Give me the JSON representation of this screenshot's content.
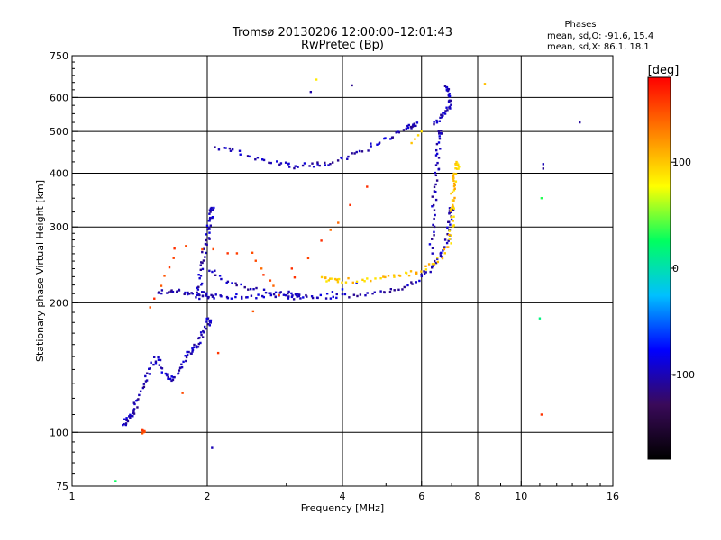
{
  "chart_data": {
    "type": "scatter",
    "title": "Tromsø 20130206 12:00:00–12:01:43",
    "subtitle": "RwPretec (Bp)",
    "stats": {
      "heading": "Phases",
      "line_o": "mean, sd,O: -91.6, 15.4",
      "line_x": "mean, sd,X:  86.1, 18.1"
    },
    "xlabel": "Frequency [MHz]",
    "ylabel": "Stationary phase Virtual Height [km]",
    "x_scale": "log",
    "y_scale": "log",
    "xlim": [
      1,
      16
    ],
    "ylim": [
      75,
      750
    ],
    "x_ticks": [
      1,
      2,
      4,
      6,
      8,
      10,
      16
    ],
    "x_tick_labels": [
      "1",
      "2",
      "4",
      "6",
      "8",
      "10",
      "16"
    ],
    "y_ticks": [
      75,
      100,
      200,
      300,
      400,
      500,
      600,
      750
    ],
    "y_tick_labels": [
      "75",
      "100",
      "200",
      "300",
      "400",
      "500",
      "600",
      "750"
    ],
    "grid": true,
    "grid_x": [
      2,
      4,
      6,
      8,
      10
    ],
    "grid_y": [
      100,
      200,
      300,
      400,
      500,
      600
    ],
    "colorbar": {
      "label": "[deg]",
      "range": [
        -180,
        180
      ],
      "ticks": [
        100,
        0,
        -100
      ],
      "tick_labels": [
        "100",
        "0",
        "-100"
      ],
      "stops": [
        "#000000",
        "#3a0a5a",
        "#0000ff",
        "#00c0ff",
        "#00ff60",
        "#ffff00",
        "#ff8000",
        "#ff0000"
      ]
    },
    "traces": [
      {
        "phase": -100,
        "x": [
          1.3,
          1.32,
          1.35,
          1.38,
          1.4,
          1.45,
          1.5,
          1.55,
          1.6,
          1.65,
          1.7,
          1.75,
          1.8,
          1.85,
          1.9,
          1.95,
          2.0,
          2.02
        ],
        "y": [
          104,
          107,
          109,
          113,
          120,
          132,
          142,
          150,
          138,
          132,
          135,
          142,
          152,
          155,
          160,
          168,
          178,
          182
        ]
      },
      {
        "phase": -100,
        "x": [
          1.9,
          1.92,
          1.95,
          1.97,
          2.0,
          2.02,
          2.03,
          2.05
        ],
        "y": [
          205,
          220,
          240,
          260,
          280,
          300,
          315,
          330
        ]
      },
      {
        "phase": -100,
        "x": [
          1.55,
          1.65,
          1.75,
          1.85,
          1.95,
          2.0,
          2.1,
          2.3,
          2.5,
          2.8,
          3.0,
          3.3,
          3.6,
          4.0,
          4.5,
          5.0,
          5.5,
          6.0,
          6.3,
          6.6,
          6.8,
          6.9,
          6.95,
          7.0
        ],
        "y": [
          213,
          212,
          212,
          210,
          210,
          207,
          207,
          207,
          207,
          207,
          206,
          206,
          206,
          207,
          209,
          212,
          218,
          228,
          240,
          255,
          270,
          290,
          310,
          330
        ]
      },
      {
        "phase": -100,
        "x": [
          2.0,
          2.2,
          2.4,
          2.7,
          3.0,
          3.2
        ],
        "y": [
          240,
          225,
          218,
          212,
          210,
          209
        ]
      },
      {
        "phase": -100,
        "x": [
          6.3,
          6.35,
          6.4,
          6.45,
          6.5,
          6.55,
          6.6
        ],
        "y": [
          260,
          300,
          340,
          380,
          420,
          460,
          500
        ]
      },
      {
        "phase": -100,
        "x": [
          2.1,
          2.3,
          2.6,
          2.9,
          3.1,
          3.4,
          3.7,
          4.0,
          4.4,
          4.8,
          5.2,
          5.6,
          5.8
        ],
        "y": [
          460,
          450,
          430,
          420,
          415,
          418,
          420,
          430,
          450,
          470,
          490,
          510,
          520
        ]
      },
      {
        "phase": -100,
        "x": [
          6.4,
          6.6,
          6.8,
          7.0,
          6.9,
          6.85
        ],
        "y": [
          520,
          540,
          560,
          580,
          600,
          630
        ]
      },
      {
        "phase": -80,
        "x": [
          3.7,
          3.8,
          4.0,
          4.3
        ],
        "y": [
          210,
          212,
          215,
          222
        ]
      },
      {
        "phase": 100,
        "x": [
          3.6,
          3.8,
          4.0,
          4.5,
          5.0,
          5.5,
          6.0,
          6.5,
          6.9,
          7.0,
          7.05
        ],
        "y": [
          228,
          226,
          225,
          226,
          228,
          232,
          238,
          250,
          270,
          300,
          330
        ]
      },
      {
        "phase": 100,
        "x": [
          7.0,
          7.05,
          7.1,
          7.15,
          7.2
        ],
        "y": [
          340,
          360,
          380,
          400,
          420
        ]
      },
      {
        "phase": 100,
        "x": [
          5.7,
          5.8,
          5.9,
          6.0
        ],
        "y": [
          470,
          480,
          490,
          500
        ]
      },
      {
        "phase": -100,
        "x": [
          11.2,
          11.2
        ],
        "y": [
          410,
          420
        ]
      },
      {
        "phase": -100,
        "x": [
          13.5,
          3.4,
          4.2,
          2.05
        ],
        "y": [
          525,
          618,
          640,
          92
        ]
      },
      {
        "phase": 100,
        "x": [
          3.5,
          8.3
        ],
        "y": [
          660,
          645
        ]
      },
      {
        "phase": 30,
        "x": [
          11.1,
          1.25,
          11.0
        ],
        "y": [
          350,
          77,
          184
        ]
      },
      {
        "phase": 150,
        "x": [
          1.5,
          1.7,
          2.5,
          2.9,
          4.5,
          1.45
        ],
        "y": [
          195,
          270,
          260,
          210,
          370,
          100
        ]
      },
      {
        "phase": 160,
        "x": [
          11.1
        ],
        "y": [
          110
        ]
      }
    ]
  }
}
